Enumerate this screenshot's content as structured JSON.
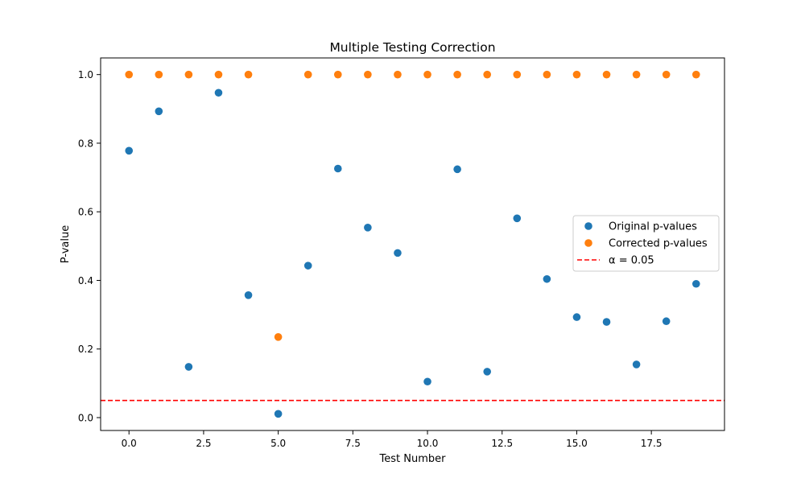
{
  "chart_data": {
    "type": "scatter",
    "title": "Multiple Testing Correction",
    "xlabel": "Test Number",
    "ylabel": "P-value",
    "xlim": [
      -0.95,
      19.95
    ],
    "ylim": [
      -0.0375,
      1.0485
    ],
    "xticks": [
      0.0,
      2.5,
      5.0,
      7.5,
      10.0,
      12.5,
      15.0,
      17.5
    ],
    "xtick_labels": [
      "0.0",
      "2.5",
      "5.0",
      "7.5",
      "10.0",
      "12.5",
      "15.0",
      "17.5"
    ],
    "yticks": [
      0.0,
      0.2,
      0.4,
      0.6,
      0.8,
      1.0
    ],
    "ytick_labels": [
      "0.0",
      "0.2",
      "0.4",
      "0.6",
      "0.8",
      "1.0"
    ],
    "grid": false,
    "legend_position": "center-right",
    "series": [
      {
        "name": "Original p-values",
        "color": "#1f77b4",
        "x": [
          0,
          1,
          2,
          3,
          4,
          5,
          6,
          7,
          8,
          9,
          10,
          11,
          12,
          13,
          14,
          15,
          16,
          17,
          18,
          19
        ],
        "y": [
          0.778,
          0.893,
          0.148,
          0.947,
          0.357,
          0.011,
          0.443,
          0.726,
          0.554,
          0.48,
          0.105,
          0.724,
          0.134,
          0.581,
          0.404,
          0.293,
          0.279,
          0.155,
          0.281,
          0.39
        ]
      },
      {
        "name": "Corrected p-values",
        "color": "#ff7f0e",
        "x": [
          0,
          1,
          2,
          3,
          4,
          5,
          6,
          7,
          8,
          9,
          10,
          11,
          12,
          13,
          14,
          15,
          16,
          17,
          18,
          19
        ],
        "y": [
          1.0,
          1.0,
          1.0,
          1.0,
          1.0,
          0.235,
          1.0,
          1.0,
          1.0,
          1.0,
          1.0,
          1.0,
          1.0,
          1.0,
          1.0,
          1.0,
          1.0,
          1.0,
          1.0,
          1.0
        ]
      }
    ],
    "reference_lines": [
      {
        "name": "α = 0.05",
        "orientation": "horizontal",
        "y": 0.05,
        "color": "#ff0000",
        "style": "dashed"
      }
    ]
  }
}
